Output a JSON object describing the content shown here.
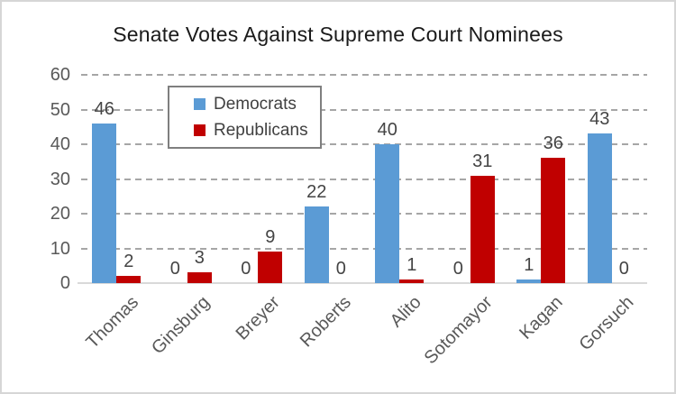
{
  "chart_data": {
    "type": "bar",
    "title": "Senate Votes Against Supreme Court Nominees",
    "categories": [
      "Thomas",
      "Ginsburg",
      "Breyer",
      "Roberts",
      "Alito",
      "Sotomayor",
      "Kagan",
      "Gorsuch"
    ],
    "series": [
      {
        "name": "Democrats",
        "color": "#5B9BD5",
        "values": [
          46,
          0,
          0,
          22,
          40,
          0,
          1,
          43
        ]
      },
      {
        "name": "Republicans",
        "color": "#C00000",
        "values": [
          2,
          3,
          9,
          0,
          1,
          31,
          36,
          0
        ]
      }
    ],
    "ylim": [
      0,
      60
    ],
    "yticks": [
      0,
      10,
      20,
      30,
      40,
      50,
      60
    ],
    "grid": "horizontal-dashed",
    "bar_labels": true,
    "legend_position": "inside-top-left",
    "colors": {
      "axis_label": "#595959",
      "data_label": "#444444",
      "gridline": "#A6A6A6",
      "axis_line": "#D9D9D9",
      "legend_border": "#7F7F7F",
      "frame": "#D6D6D6"
    }
  }
}
